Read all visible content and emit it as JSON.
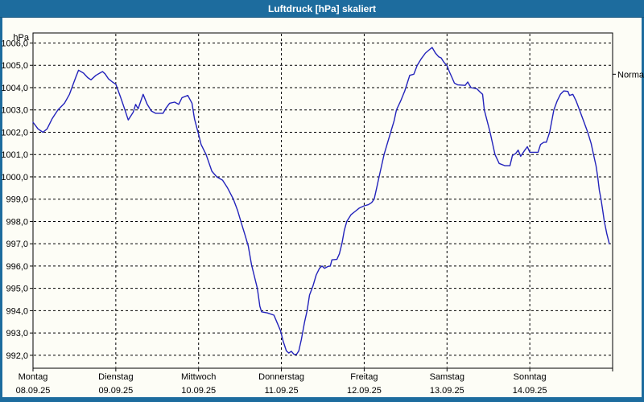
{
  "window": {
    "title": "Luftdruck [hPa] skaliert"
  },
  "colors": {
    "titlebar": "#1d6c9e",
    "panel_background": "#fdfdf6",
    "curve": "#2323bb",
    "grid": "#000000",
    "text": "#000000",
    "annotation_text": "#222222"
  },
  "chart_data": {
    "type": "line",
    "title": "Luftdruck [hPa] skaliert",
    "ylabel": "hPa",
    "ylim": [
      991.42,
      1006.45
    ],
    "xlim_days": [
      0,
      7
    ],
    "grid": "dashed, horizontal at each hPa tick and vertical at each day boundary",
    "legend_position": "none",
    "ytick_values": [
      1006,
      1005,
      1004,
      1003,
      1002,
      1001,
      1000,
      999,
      998,
      997,
      996,
      995,
      994,
      993,
      992
    ],
    "ytick_labels": [
      "1006,0",
      "1005,0",
      "1004,0",
      "1003,0",
      "1002,0",
      "1001,0",
      "1000,0",
      "999,0",
      "998,0",
      "997,0",
      "996,0",
      "995,0",
      "994,0",
      "993,0",
      "992,0"
    ],
    "x_days": [
      {
        "label": "Montag",
        "date": "08.09.25"
      },
      {
        "label": "Dienstag",
        "date": "09.09.25"
      },
      {
        "label": "Mittwoch",
        "date": "10.09.25"
      },
      {
        "label": "Donnerstag",
        "date": "11.09.25"
      },
      {
        "label": "Freitag",
        "date": "12.09.25"
      },
      {
        "label": "Samstag",
        "date": "13.09.25"
      },
      {
        "label": "Sonntag",
        "date": "14.09.25"
      }
    ],
    "annotation": {
      "label": "Normal",
      "value": 1004.6
    },
    "series": [
      {
        "name": "Luftdruck",
        "color": "#2323bb",
        "points": [
          [
            0.0,
            1002.45
          ],
          [
            0.06,
            1002.15
          ],
          [
            0.12,
            1002.0
          ],
          [
            0.17,
            1002.15
          ],
          [
            0.23,
            1002.6
          ],
          [
            0.3,
            1003.0
          ],
          [
            0.38,
            1003.3
          ],
          [
            0.44,
            1003.7
          ],
          [
            0.49,
            1004.2
          ],
          [
            0.52,
            1004.5
          ],
          [
            0.55,
            1004.78
          ],
          [
            0.61,
            1004.65
          ],
          [
            0.66,
            1004.45
          ],
          [
            0.7,
            1004.35
          ],
          [
            0.76,
            1004.55
          ],
          [
            0.82,
            1004.68
          ],
          [
            0.84,
            1004.72
          ],
          [
            0.87,
            1004.62
          ],
          [
            0.91,
            1004.4
          ],
          [
            0.96,
            1004.25
          ],
          [
            1.0,
            1004.15
          ],
          [
            1.06,
            1003.55
          ],
          [
            1.11,
            1003.0
          ],
          [
            1.15,
            1002.55
          ],
          [
            1.21,
            1002.9
          ],
          [
            1.24,
            1003.25
          ],
          [
            1.27,
            1003.05
          ],
          [
            1.33,
            1003.7
          ],
          [
            1.38,
            1003.25
          ],
          [
            1.43,
            1002.95
          ],
          [
            1.48,
            1002.85
          ],
          [
            1.57,
            1002.85
          ],
          [
            1.61,
            1003.1
          ],
          [
            1.65,
            1003.3
          ],
          [
            1.71,
            1003.35
          ],
          [
            1.76,
            1003.25
          ],
          [
            1.8,
            1003.55
          ],
          [
            1.87,
            1003.65
          ],
          [
            1.92,
            1003.3
          ],
          [
            1.95,
            1002.6
          ],
          [
            2.0,
            1001.9
          ],
          [
            2.03,
            1001.45
          ],
          [
            2.09,
            1001.0
          ],
          [
            2.16,
            1000.25
          ],
          [
            2.22,
            1000.0
          ],
          [
            2.29,
            999.85
          ],
          [
            2.35,
            999.5
          ],
          [
            2.42,
            999.0
          ],
          [
            2.47,
            998.5
          ],
          [
            2.51,
            998.0
          ],
          [
            2.56,
            997.4
          ],
          [
            2.6,
            996.9
          ],
          [
            2.64,
            996.05
          ],
          [
            2.71,
            995.0
          ],
          [
            2.74,
            994.2
          ],
          [
            2.76,
            993.95
          ],
          [
            2.83,
            993.9
          ],
          [
            2.91,
            993.8
          ],
          [
            2.95,
            993.45
          ],
          [
            2.99,
            993.1
          ],
          [
            3.02,
            992.65
          ],
          [
            3.06,
            992.2
          ],
          [
            3.09,
            992.1
          ],
          [
            3.12,
            992.18
          ],
          [
            3.15,
            992.05
          ],
          [
            3.18,
            992.03
          ],
          [
            3.21,
            992.2
          ],
          [
            3.24,
            992.7
          ],
          [
            3.28,
            993.5
          ],
          [
            3.31,
            994.0
          ],
          [
            3.34,
            994.7
          ],
          [
            3.38,
            995.1
          ],
          [
            3.42,
            995.6
          ],
          [
            3.46,
            995.9
          ],
          [
            3.49,
            996.0
          ],
          [
            3.52,
            995.9
          ],
          [
            3.56,
            995.98
          ],
          [
            3.59,
            996.0
          ],
          [
            3.61,
            996.28
          ],
          [
            3.67,
            996.3
          ],
          [
            3.7,
            996.55
          ],
          [
            3.73,
            997.0
          ],
          [
            3.76,
            997.6
          ],
          [
            3.79,
            998.0
          ],
          [
            3.84,
            998.3
          ],
          [
            3.89,
            998.45
          ],
          [
            3.94,
            998.6
          ],
          [
            4.0,
            998.7
          ],
          [
            4.05,
            998.75
          ],
          [
            4.09,
            998.85
          ],
          [
            4.12,
            999.0
          ],
          [
            4.15,
            999.5
          ],
          [
            4.18,
            1000.0
          ],
          [
            4.21,
            1000.5
          ],
          [
            4.24,
            1001.0
          ],
          [
            4.28,
            1001.5
          ],
          [
            4.32,
            1002.0
          ],
          [
            4.36,
            1002.5
          ],
          [
            4.39,
            1003.0
          ],
          [
            4.44,
            1003.4
          ],
          [
            4.49,
            1003.85
          ],
          [
            4.52,
            1004.2
          ],
          [
            4.55,
            1004.55
          ],
          [
            4.6,
            1004.6
          ],
          [
            4.64,
            1005.0
          ],
          [
            4.69,
            1005.3
          ],
          [
            4.74,
            1005.55
          ],
          [
            4.78,
            1005.68
          ],
          [
            4.82,
            1005.8
          ],
          [
            4.86,
            1005.55
          ],
          [
            4.9,
            1005.38
          ],
          [
            4.93,
            1005.33
          ],
          [
            4.96,
            1005.15
          ],
          [
            5.0,
            1004.98
          ],
          [
            5.03,
            1004.7
          ],
          [
            5.06,
            1004.45
          ],
          [
            5.09,
            1004.2
          ],
          [
            5.13,
            1004.12
          ],
          [
            5.22,
            1004.1
          ],
          [
            5.25,
            1004.25
          ],
          [
            5.29,
            1004.0
          ],
          [
            5.36,
            1003.95
          ],
          [
            5.4,
            1003.8
          ],
          [
            5.43,
            1003.7
          ],
          [
            5.45,
            1003.0
          ],
          [
            5.52,
            1002.0
          ],
          [
            5.58,
            1001.0
          ],
          [
            5.63,
            1000.6
          ],
          [
            5.7,
            1000.5
          ],
          [
            5.76,
            1000.5
          ],
          [
            5.79,
            1000.95
          ],
          [
            5.83,
            1001.05
          ],
          [
            5.86,
            1001.2
          ],
          [
            5.89,
            1000.92
          ],
          [
            5.94,
            1001.2
          ],
          [
            5.97,
            1001.35
          ],
          [
            6.0,
            1001.1
          ],
          [
            6.1,
            1001.1
          ],
          [
            6.13,
            1001.45
          ],
          [
            6.17,
            1001.55
          ],
          [
            6.2,
            1001.55
          ],
          [
            6.24,
            1002.0
          ],
          [
            6.29,
            1003.0
          ],
          [
            6.33,
            1003.4
          ],
          [
            6.37,
            1003.7
          ],
          [
            6.41,
            1003.85
          ],
          [
            6.46,
            1003.83
          ],
          [
            6.48,
            1003.65
          ],
          [
            6.52,
            1003.7
          ],
          [
            6.56,
            1003.4
          ],
          [
            6.6,
            1003.0
          ],
          [
            6.65,
            1002.5
          ],
          [
            6.7,
            1002.0
          ],
          [
            6.74,
            1001.5
          ],
          [
            6.77,
            1001.0
          ],
          [
            6.8,
            1000.5
          ],
          [
            6.82,
            1000.0
          ],
          [
            6.84,
            999.4
          ],
          [
            6.86,
            999.0
          ],
          [
            6.88,
            998.5
          ],
          [
            6.9,
            998.0
          ],
          [
            6.93,
            997.45
          ],
          [
            6.96,
            997.0
          ]
        ]
      }
    ]
  }
}
